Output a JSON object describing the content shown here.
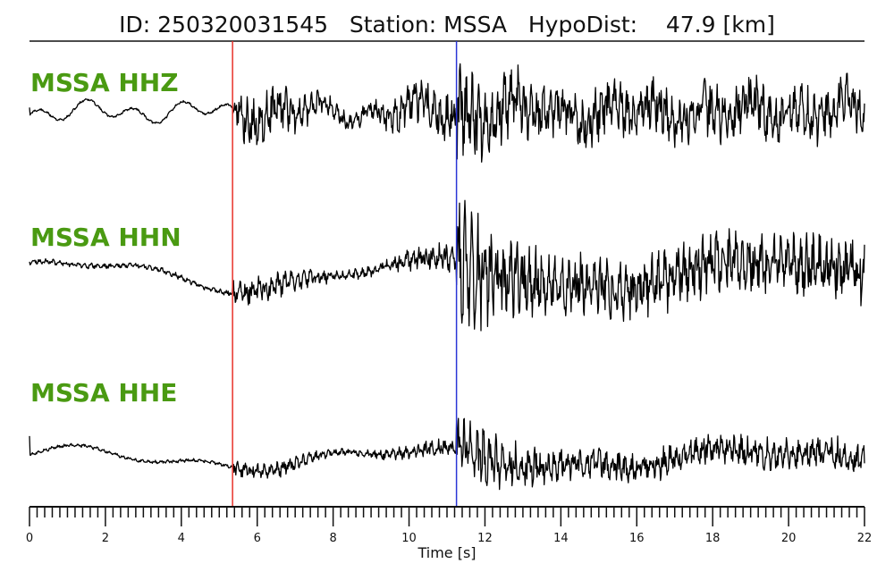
{
  "title": {
    "id_label": "ID:",
    "id_value": "250320031545",
    "station_label": "Station:",
    "station_value": "MSSA",
    "hypodist_label": "HypoDist:",
    "hypodist_value": "47.9",
    "hypodist_unit": "[km]"
  },
  "colors": {
    "label": "#4a9a12",
    "trace": "#000000",
    "p_pick": "#e8312a",
    "s_pick": "#2a35d6"
  },
  "chart_data": {
    "type": "line",
    "xlabel": "Time [s]",
    "xlim": [
      0,
      22
    ],
    "major_ticks": [
      0,
      2,
      4,
      6,
      8,
      10,
      12,
      14,
      16,
      18,
      20,
      22
    ],
    "minor_tick_step": 0.2,
    "picks": [
      {
        "phase": "P",
        "time": 5.35,
        "color": "#e8312a"
      },
      {
        "phase": "S",
        "time": 11.25,
        "color": "#2a35d6"
      }
    ],
    "series": [
      {
        "name": "MSSA HHZ"
      },
      {
        "name": "MSSA HHN"
      },
      {
        "name": "MSSA HHE"
      }
    ]
  }
}
